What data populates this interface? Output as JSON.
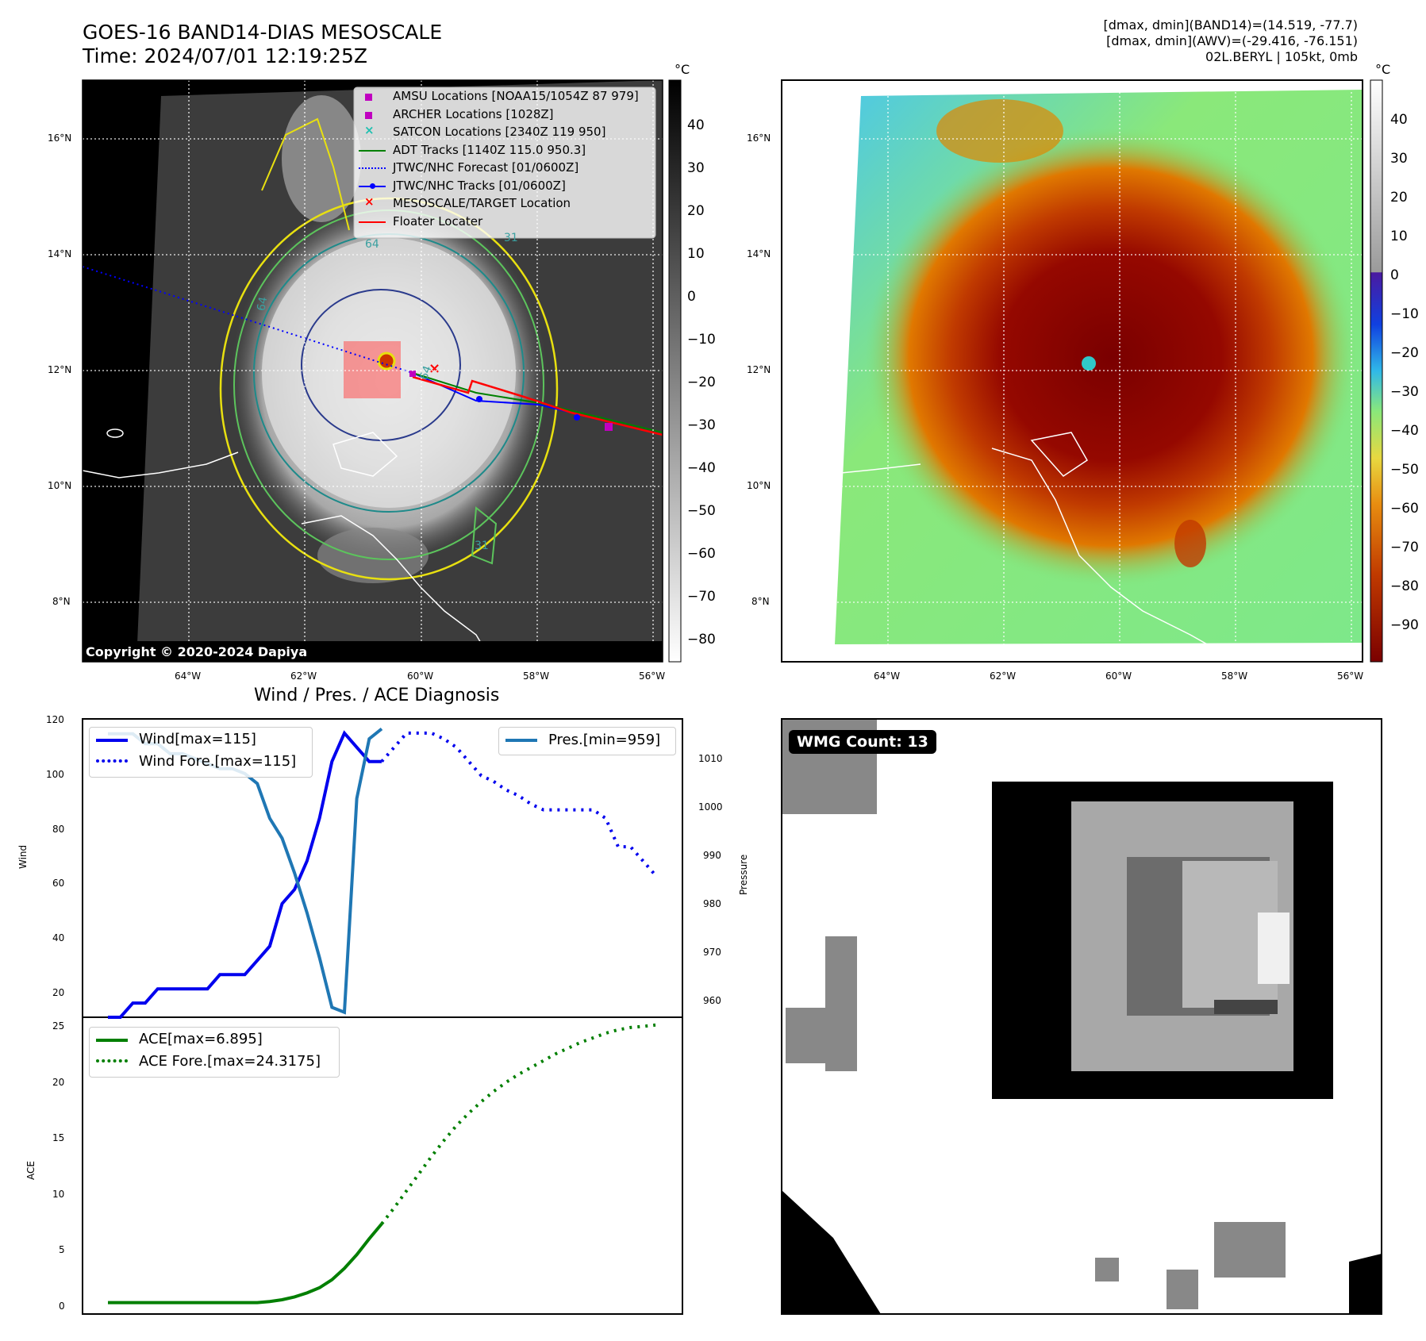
{
  "header": {
    "title_line1": "GOES-16 BAND14-DIAS MESOSCALE",
    "title_line2": "Time: 2024/07/01 12:19:25Z",
    "info_line1": "[dmax, dmin](BAND14)=(14.519, -77.7)",
    "info_line2": "[dmax, dmin](AWV)=(-29.416, -76.151)",
    "info_line3": "02L.BERYL | 105kt, 0mb"
  },
  "map_axes": {
    "lat_labels": [
      "16°N",
      "14°N",
      "12°N",
      "10°N",
      "8°N"
    ],
    "lon_labels": [
      "64°W",
      "62°W",
      "60°W",
      "58°W",
      "56°W"
    ]
  },
  "ir_panel": {
    "copyright": "Copyright © 2020-2024 Dapiya",
    "colorbar_unit": "°C",
    "colorbar_ticks": [
      "40",
      "30",
      "20",
      "10",
      "0",
      "−10",
      "−20",
      "−30",
      "−40",
      "−50",
      "−60",
      "−70",
      "−80"
    ],
    "legend": [
      {
        "label": "AMSU Locations [NOAA15/1054Z 87 979]",
        "marker": "square",
        "color": "#c000c0"
      },
      {
        "label": "ARCHER Locations [1028Z]",
        "marker": "square",
        "color": "#c000c0"
      },
      {
        "label": "SATCON Locations [2340Z 119 950]",
        "marker": "x",
        "color": "#20c0b0"
      },
      {
        "label": "ADT Tracks [1140Z 115.0 950.3]",
        "marker": "line",
        "color": "#008000"
      },
      {
        "label": "JTWC/NHC Forecast [01/0600Z]",
        "marker": "dotted",
        "color": "#0000ff"
      },
      {
        "label": "JTWC/NHC Tracks [01/0600Z]",
        "marker": "line-dot",
        "color": "#0000ff"
      },
      {
        "label": "MESOSCALE/TARGET Location",
        "marker": "x",
        "color": "#ff0000"
      },
      {
        "label": "Floater Locater",
        "marker": "line",
        "color": "#ff0000"
      }
    ],
    "contour_labels": [
      "64",
      "64",
      "31",
      "31",
      "64"
    ]
  },
  "color_panel": {
    "colorbar_unit": "°C",
    "colorbar_ticks": [
      "40",
      "30",
      "20",
      "10",
      "0",
      "−10",
      "−20",
      "−30",
      "−40",
      "−50",
      "−60",
      "−70",
      "−80",
      "−90"
    ]
  },
  "diagnosis": {
    "title": "Wind / Pres. / ACE Diagnosis",
    "wind_ylabel": "Wind",
    "pres_ylabel": "Pressure",
    "ace_ylabel": "ACE",
    "wind_ticks": [
      "120",
      "100",
      "80",
      "60",
      "40",
      "20"
    ],
    "pres_ticks": [
      "1010",
      "1000",
      "990",
      "980",
      "970",
      "960"
    ],
    "ace_ticks": [
      "25",
      "20",
      "15",
      "10",
      "5",
      "0"
    ],
    "legend_wind": "Wind[max=115]",
    "legend_wind_fore": "Wind Fore.[max=115]",
    "legend_pres": "Pres.[min=959]",
    "legend_ace": "ACE[max=6.895]",
    "legend_ace_fore": "ACE Fore.[max=24.3175]"
  },
  "wmg": {
    "badge": "WMG Count: 13"
  },
  "colors": {
    "wind": "#0000ee",
    "pres": "#1f77b4",
    "ace": "#007f00"
  },
  "chart_data": [
    {
      "type": "line",
      "title": "Wind / Pres. / ACE Diagnosis",
      "ylabel": "Wind",
      "ylim": [
        15,
        120
      ],
      "x": [
        0,
        1,
        2,
        3,
        4,
        5,
        6,
        7,
        8,
        9,
        10,
        11,
        12,
        13,
        14,
        15,
        16,
        17,
        18,
        19,
        20,
        21,
        22
      ],
      "series": [
        {
          "name": "Wind[max=115]",
          "x": [
            0,
            1,
            2,
            3,
            4,
            5,
            6,
            7,
            8,
            9,
            10,
            11,
            12,
            13,
            14,
            15,
            16,
            17,
            18,
            19,
            20,
            21,
            22
          ],
          "values": [
            15,
            15,
            20,
            20,
            25,
            25,
            25,
            25,
            25,
            30,
            30,
            30,
            35,
            40,
            55,
            60,
            70,
            85,
            105,
            115,
            110,
            105,
            105
          ]
        },
        {
          "name": "Wind Fore.[max=115]",
          "x": [
            22,
            23,
            24,
            25,
            26,
            27,
            28,
            29,
            30,
            31,
            32,
            33,
            34,
            35,
            36,
            37,
            38,
            39,
            40,
            41,
            42,
            43,
            44
          ],
          "values": [
            105,
            110,
            115,
            115,
            115,
            113,
            110,
            105,
            100,
            98,
            95,
            93,
            90,
            88,
            88,
            88,
            88,
            88,
            85,
            75,
            75,
            70,
            65
          ]
        }
      ]
    },
    {
      "type": "line",
      "ylabel": "Pressure",
      "ylim": [
        958,
        1018
      ],
      "series": [
        {
          "name": "Pres.[min=959]",
          "x": [
            0,
            1,
            2,
            3,
            4,
            5,
            6,
            7,
            8,
            9,
            10,
            11,
            12,
            13,
            14,
            15,
            16,
            17,
            18,
            19,
            20,
            21,
            22
          ],
          "values": [
            1015,
            1015,
            1015,
            1013,
            1013,
            1011,
            1011,
            1010,
            1009,
            1008,
            1008,
            1007,
            1005,
            998,
            994,
            987,
            979,
            970,
            960,
            959,
            1002,
            1014,
            1016
          ]
        }
      ]
    },
    {
      "type": "line",
      "ylabel": "ACE",
      "ylim": [
        -1,
        25
      ],
      "series": [
        {
          "name": "ACE[max=6.895]",
          "x": [
            0,
            1,
            2,
            3,
            4,
            5,
            6,
            7,
            8,
            9,
            10,
            11,
            12,
            13,
            14,
            15,
            16,
            17,
            18,
            19,
            20,
            21,
            22
          ],
          "values": [
            0,
            0,
            0,
            0,
            0,
            0,
            0,
            0,
            0,
            0,
            0,
            0,
            0,
            0.1,
            0.25,
            0.5,
            0.85,
            1.3,
            2.0,
            3.0,
            4.2,
            5.6,
            6.895
          ]
        },
        {
          "name": "ACE Fore.[max=24.3175]",
          "x": [
            22,
            23,
            24,
            25,
            26,
            27,
            28,
            29,
            30,
            31,
            32,
            33,
            34,
            35,
            36,
            37,
            38,
            39,
            40,
            41,
            42,
            43,
            44
          ],
          "values": [
            6.895,
            8.3,
            9.8,
            11.3,
            12.8,
            14.2,
            15.5,
            16.6,
            17.6,
            18.5,
            19.3,
            20.0,
            20.6,
            21.2,
            21.8,
            22.3,
            22.8,
            23.2,
            23.6,
            23.9,
            24.1,
            24.2,
            24.3175
          ]
        }
      ]
    }
  ]
}
